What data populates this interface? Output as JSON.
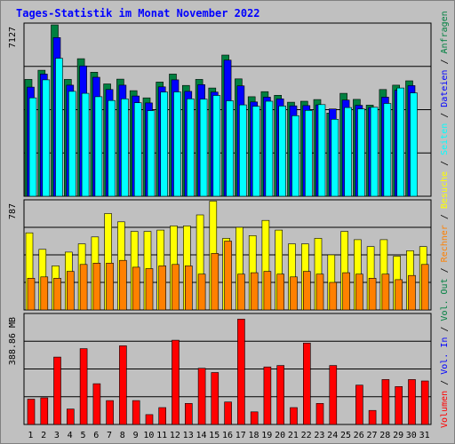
{
  "title": "Tages-Statistik im Monat November 2022",
  "chart_data": {
    "type": "bar",
    "days": [
      "1",
      "2",
      "3",
      "4",
      "5",
      "6",
      "7",
      "8",
      "9",
      "10",
      "11",
      "12",
      "13",
      "14",
      "15",
      "16",
      "17",
      "18",
      "19",
      "20",
      "21",
      "22",
      "23",
      "24",
      "25",
      "26",
      "27",
      "28",
      "29",
      "30",
      "31"
    ],
    "weekend_days": [
      5,
      6,
      12,
      13,
      19,
      20,
      26,
      27
    ],
    "weekend_color": "#008040",
    "panels": [
      {
        "max_label": "7127",
        "ymax": 7127,
        "series": [
          {
            "name": "Anfragen",
            "color": "#008040",
            "values": [
              4860,
              5240,
              7127,
              4860,
              5720,
              5160,
              4670,
              4870,
              4390,
              4090,
              4750,
              5080,
              4610,
              4860,
              4500,
              5870,
              4880,
              4140,
              4350,
              4200,
              3910,
              3950,
              4020,
              3460,
              4280,
              4030,
              3790,
              4440,
              4620,
              4800,
              null
            ]
          },
          {
            "name": "Dateien",
            "color": "#0000ff",
            "values": [
              4540,
              5080,
              6600,
              4620,
              5420,
              4950,
              4440,
              4620,
              4170,
              3880,
              4550,
              4840,
              4360,
              4640,
              4330,
              5660,
              4590,
              3920,
              4120,
              4050,
              3760,
              3770,
              3800,
              3630,
              4000,
              3780,
              3690,
              4120,
              4410,
              4600,
              null
            ]
          },
          {
            "name": "Seiten",
            "color": "#00ffff",
            "values": [
              4090,
              4840,
              5740,
              4360,
              4280,
              4140,
              3980,
              4050,
              3890,
              3560,
              4330,
              4340,
              4050,
              4040,
              4190,
              3970,
              3800,
              3740,
              3950,
              3750,
              3350,
              3570,
              3810,
              3200,
              3690,
              3630,
              3700,
              3860,
              4500,
              4300,
              null
            ]
          }
        ]
      },
      {
        "max_label": "787",
        "ymax": 787,
        "series": [
          {
            "name": "Besuche",
            "color": "#ffff00",
            "values": [
              560,
              440,
              320,
              420,
              480,
              530,
              700,
              640,
              570,
              570,
              580,
              610,
              610,
              690,
              790,
              520,
              600,
              540,
              650,
              580,
              480,
              480,
              520,
              400,
              570,
              510,
              460,
              510,
              390,
              430,
              460
            ]
          },
          {
            "name": "Rechner",
            "color": "#ff8000",
            "values": [
              230,
              240,
              230,
              280,
              330,
              340,
              340,
              360,
              310,
              300,
              320,
              330,
              320,
              260,
              410,
              500,
              260,
              270,
              280,
              260,
              240,
              280,
              260,
              200,
              270,
              260,
              230,
              260,
              220,
              250,
              330
            ]
          }
        ]
      },
      {
        "max_label": "388.86 MB",
        "ymax": 388.86,
        "series": [
          {
            "name": "Volumen",
            "color": "#ff0000",
            "values": [
              90,
              95,
              240,
              55,
              270,
              145,
              85,
              280,
              85,
              35,
              60,
              300,
              75,
              200,
              185,
              80,
              375,
              45,
              205,
              210,
              60,
              290,
              75,
              210,
              0,
              140,
              50,
              160,
              135,
              160,
              155
            ]
          }
        ]
      }
    ],
    "legend_right": [
      {
        "text": "Anfragen",
        "color": "#008040"
      },
      {
        "text": " / ",
        "color": "#000000"
      },
      {
        "text": "Dateien",
        "color": "#0000ff"
      },
      {
        "text": " / ",
        "color": "#000000"
      },
      {
        "text": "Seiten",
        "color": "#00ffff"
      },
      {
        "text": " / ",
        "color": "#000000"
      },
      {
        "text": "Besuche",
        "color": "#ffff00"
      },
      {
        "text": " / ",
        "color": "#000000"
      },
      {
        "text": "Rechner",
        "color": "#ff8000"
      },
      {
        "text": " / ",
        "color": "#000000"
      },
      {
        "text": "Vol. Out",
        "color": "#008040"
      },
      {
        "text": " / ",
        "color": "#000000"
      },
      {
        "text": "Vol. In",
        "color": "#0000ff"
      },
      {
        "text": " / ",
        "color": "#000000"
      },
      {
        "text": "Volumen",
        "color": "#ff0000"
      }
    ]
  }
}
